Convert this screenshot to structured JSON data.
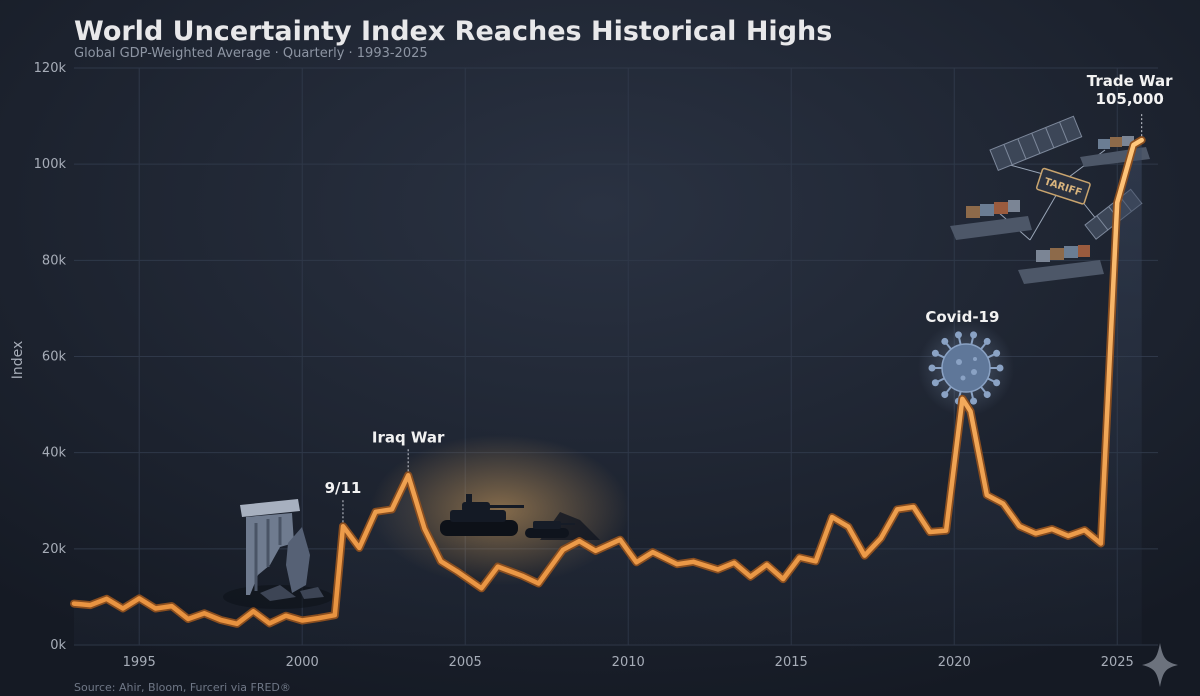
{
  "chart_data": {
    "type": "line",
    "title": "World Uncertainty Index Reaches Historical Highs",
    "subtitle": "Global GDP-Weighted Average · Quarterly · 1993-2025",
    "xlabel": "",
    "ylabel": "Index",
    "xlim": [
      1993,
      2026.25
    ],
    "ylim": [
      0,
      120000
    ],
    "x_ticks": [
      1995,
      2000,
      2005,
      2010,
      2015,
      2020,
      2025
    ],
    "y_ticks": [
      0,
      20000,
      40000,
      60000,
      80000,
      100000,
      120000
    ],
    "y_tick_labels": [
      "0k",
      "20k",
      "40k",
      "60k",
      "80k",
      "100k",
      "120k"
    ],
    "grid": true,
    "series": [
      {
        "name": "World Uncertainty Index",
        "points": [
          [
            1993.0,
            8600
          ],
          [
            1993.5,
            8300
          ],
          [
            1994.0,
            9600
          ],
          [
            1994.5,
            7600
          ],
          [
            1995.0,
            9700
          ],
          [
            1995.5,
            7600
          ],
          [
            1996.0,
            8100
          ],
          [
            1996.5,
            5400
          ],
          [
            1997.0,
            6600
          ],
          [
            1997.5,
            5200
          ],
          [
            1998.0,
            4400
          ],
          [
            1998.5,
            7000
          ],
          [
            1999.0,
            4500
          ],
          [
            1999.5,
            6100
          ],
          [
            2000.0,
            5100
          ],
          [
            2000.5,
            5600
          ],
          [
            2001.0,
            6200
          ],
          [
            2001.25,
            24700
          ],
          [
            2001.75,
            20200
          ],
          [
            2002.25,
            27700
          ],
          [
            2002.75,
            28200
          ],
          [
            2003.25,
            35300
          ],
          [
            2003.75,
            24200
          ],
          [
            2004.25,
            17400
          ],
          [
            2004.75,
            15300
          ],
          [
            2005.5,
            11800
          ],
          [
            2006.0,
            16300
          ],
          [
            2006.75,
            14400
          ],
          [
            2007.25,
            12800
          ],
          [
            2008.0,
            19800
          ],
          [
            2008.5,
            21600
          ],
          [
            2009.0,
            19600
          ],
          [
            2009.75,
            21900
          ],
          [
            2010.25,
            17200
          ],
          [
            2010.75,
            19300
          ],
          [
            2011.5,
            16800
          ],
          [
            2012.0,
            17300
          ],
          [
            2012.75,
            15700
          ],
          [
            2013.25,
            17100
          ],
          [
            2013.75,
            14200
          ],
          [
            2014.25,
            16700
          ],
          [
            2014.75,
            13700
          ],
          [
            2015.25,
            18200
          ],
          [
            2015.75,
            17400
          ],
          [
            2016.25,
            26600
          ],
          [
            2016.75,
            24600
          ],
          [
            2017.25,
            18600
          ],
          [
            2017.75,
            22200
          ],
          [
            2018.25,
            28200
          ],
          [
            2018.75,
            28700
          ],
          [
            2019.25,
            23500
          ],
          [
            2019.75,
            23800
          ],
          [
            2020.25,
            51200
          ],
          [
            2020.5,
            48600
          ],
          [
            2021.0,
            31200
          ],
          [
            2021.5,
            29400
          ],
          [
            2022.0,
            24700
          ],
          [
            2022.5,
            23200
          ],
          [
            2023.0,
            24100
          ],
          [
            2023.5,
            22700
          ],
          [
            2024.0,
            23900
          ],
          [
            2024.5,
            21100
          ],
          [
            2025.0,
            92000
          ],
          [
            2025.5,
            104000
          ],
          [
            2025.75,
            105000
          ]
        ]
      }
    ],
    "annotations": [
      {
        "label": "9/11",
        "x": 2001.25,
        "y": 24700
      },
      {
        "label": "Iraq War",
        "x": 2003.25,
        "y": 35300
      },
      {
        "label": "Covid-19",
        "x": 2020.25,
        "y": 51200
      },
      {
        "label": "Trade War",
        "value_label": "105,000",
        "x": 2025.75,
        "y": 105000
      }
    ],
    "illustrations": [
      "broken-column",
      "tanks",
      "coronavirus",
      "container-ships"
    ],
    "tariff_label": "TARIFF",
    "source": "Source: Ahir, Bloom, Furceri via FRED®",
    "colors": {
      "line": "#f0a456",
      "line_dark": "#b86a2a",
      "background": "#1b2230",
      "grid": "#2f3849",
      "text": "#e8e8ea",
      "muted": "#8d95a3"
    }
  }
}
